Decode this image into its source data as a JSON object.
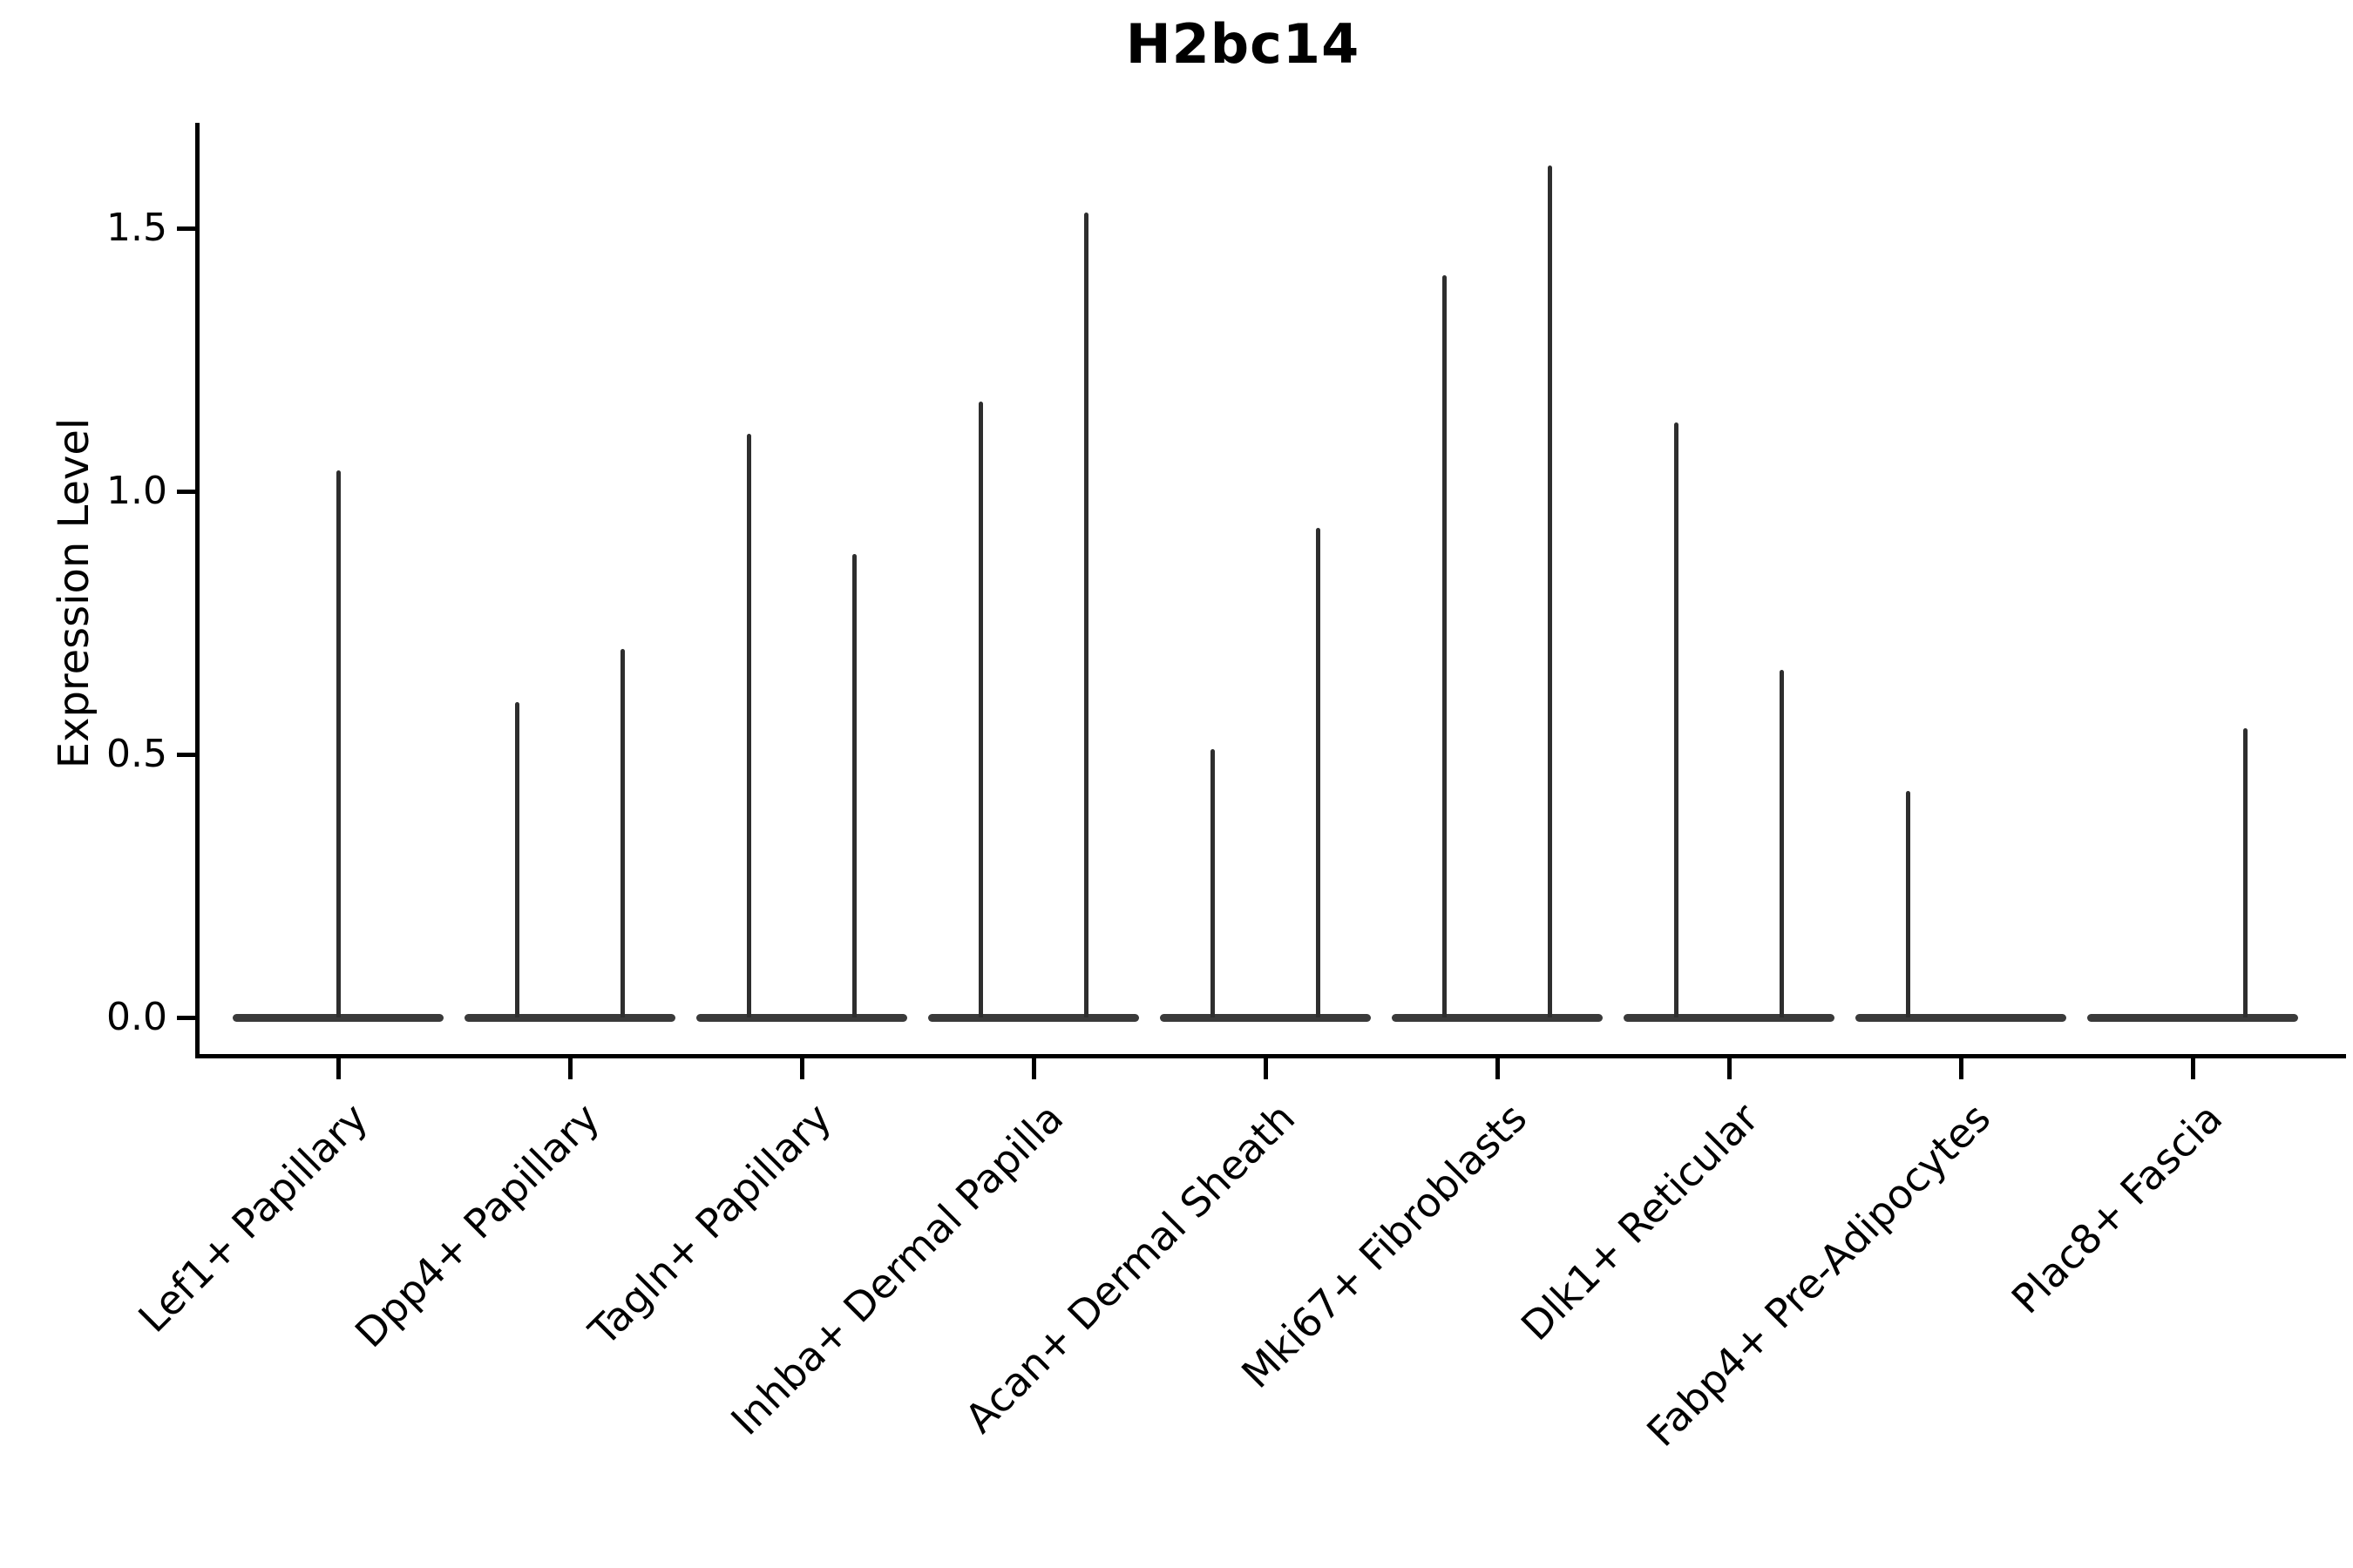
{
  "figure": {
    "title": "H2bc14",
    "ylabel": "Expression Level"
  },
  "chart_data": {
    "type": "violin",
    "title": "H2bc14",
    "xlabel": "",
    "ylabel": "Expression Level",
    "ylim": [
      -0.07,
      1.72
    ],
    "yticks": [
      "0.0",
      "0.5",
      "1.0",
      "1.5"
    ],
    "ytick_values": [
      0.0,
      0.5,
      1.0,
      1.5
    ],
    "grid": false,
    "legend": null,
    "xticklabel_rotation": 45,
    "categories": [
      "Lef1+ Papillary",
      "Dpp4+ Papillary",
      "Tagln+ Papillary",
      "Inhba+ Dermal Papilla",
      "Acan+ Dermal Sheath",
      "Mki67+ Fibroblasts",
      "Dlk1+ Reticular",
      "Fabp4+ Pre-Adipocytes",
      "Plac8+ Fascia"
    ],
    "violins": [
      {
        "category": "Lef1+ Papillary",
        "spikes": [
          {
            "position": "center",
            "max_expression": 1.04
          }
        ]
      },
      {
        "category": "Dpp4+ Papillary",
        "spikes": [
          {
            "position": "left",
            "max_expression": 0.6
          },
          {
            "position": "right",
            "max_expression": 0.7
          }
        ]
      },
      {
        "category": "Tagln+ Papillary",
        "spikes": [
          {
            "position": "left",
            "max_expression": 1.11
          },
          {
            "position": "right",
            "max_expression": 0.88
          }
        ]
      },
      {
        "category": "Inhba+ Dermal Papilla",
        "spikes": [
          {
            "position": "left",
            "max_expression": 1.17
          },
          {
            "position": "right",
            "max_expression": 1.53
          }
        ]
      },
      {
        "category": "Acan+ Dermal Sheath",
        "spikes": [
          {
            "position": "left",
            "max_expression": 0.51
          },
          {
            "position": "right",
            "max_expression": 0.93
          }
        ]
      },
      {
        "category": "Mki67+ Fibroblasts",
        "spikes": [
          {
            "position": "left",
            "max_expression": 1.41
          },
          {
            "position": "right",
            "max_expression": 1.62
          }
        ]
      },
      {
        "category": "Dlk1+ Reticular",
        "spikes": [
          {
            "position": "left",
            "max_expression": 1.13
          },
          {
            "position": "right",
            "max_expression": 0.66
          }
        ]
      },
      {
        "category": "Fabp4+ Pre-Adipocytes",
        "spikes": [
          {
            "position": "left",
            "max_expression": 0.43
          }
        ]
      },
      {
        "category": "Plac8+ Fascia",
        "spikes": [
          {
            "position": "right",
            "max_expression": 0.55
          }
        ]
      }
    ],
    "baseline_expression": 0.0
  },
  "colors": {
    "background": "#ffffff",
    "axis": "#000000",
    "text": "#000000",
    "violin_base": "#3a3a3a",
    "violin_spike": "#2e2e2e"
  }
}
